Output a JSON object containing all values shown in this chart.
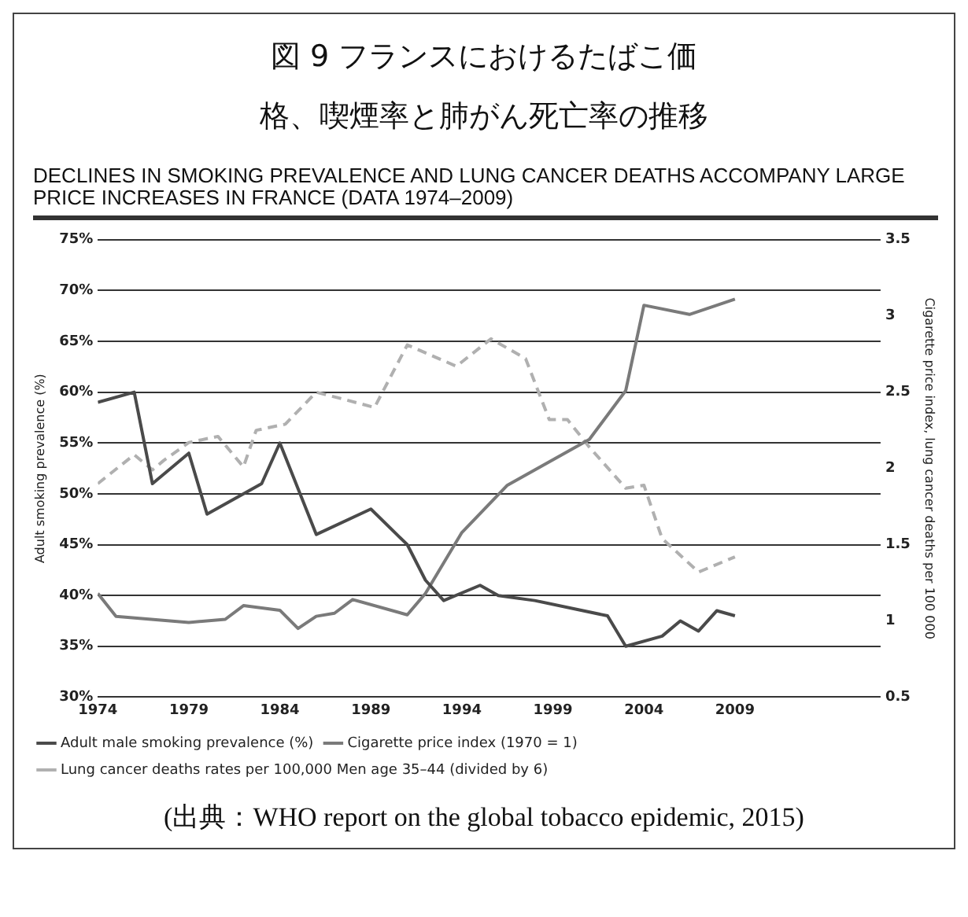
{
  "chart_data": {
    "type": "line",
    "title": "図 9 フランスにおけるたばこ価格、喫煙率と肺がん死亡率の推移",
    "subtitle": "DECLINES IN SMOKING PREVALENCE AND LUNG CANCER DEATHS ACCOMPANY LARGE PRICE INCREASES IN FRANCE (DATA 1974–2009)",
    "ylabel": "Adult smoking prevalence (%)",
    "y2label": "Cigarette price index, lung cancer deaths per 100 000",
    "annotations": [
      "(出典：WHO report on the global tobacco epidemic, 2015)"
    ],
    "xlim": [
      1974,
      2017
    ],
    "xticks": [
      1974,
      1979,
      1984,
      1989,
      1994,
      1999,
      2004,
      2009
    ],
    "ylim": [
      30,
      75
    ],
    "yticks": [
      {
        "value": 30,
        "label": "30%"
      },
      {
        "value": 35,
        "label": "35%"
      },
      {
        "value": 40,
        "label": "40%"
      },
      {
        "value": 45,
        "label": "45%"
      },
      {
        "value": 50,
        "label": "50%"
      },
      {
        "value": 55,
        "label": "55%"
      },
      {
        "value": 60,
        "label": "60%"
      },
      {
        "value": 65,
        "label": "65%"
      },
      {
        "value": 70,
        "label": "70%"
      },
      {
        "value": 75,
        "label": "75%"
      }
    ],
    "y2lim": [
      0.5,
      3.5
    ],
    "y2ticks": [
      0.5,
      1,
      1.5,
      2,
      2.5,
      3,
      3.5
    ],
    "grid": "y",
    "legend": "bottom",
    "marker": "none",
    "series": [
      {
        "name": "Adult male smoking prevalence (%)",
        "color": "#4a4a4a",
        "line_style": "solid",
        "x": [
          1974,
          1976,
          1977,
          1979,
          1980,
          1983,
          1984,
          1986,
          1989,
          1991,
          1992,
          1993,
          1995,
          1996,
          1998,
          2002,
          2003,
          2005,
          2006,
          2007,
          2008,
          2009
        ],
        "values": [
          59,
          60,
          51,
          54,
          48,
          51,
          55,
          46,
          48.5,
          45,
          41.5,
          39.5,
          41,
          40,
          39.5,
          38,
          35,
          36,
          37.5,
          36.5,
          38.5,
          38
        ]
      },
      {
        "name": "Cigarette price index (1970 = 1)",
        "color": "#7a7a7a",
        "line_style": "solid",
        "axis": "y2",
        "x": [
          1974,
          1975,
          1979,
          1981,
          1982,
          1984,
          1985,
          1986,
          1987,
          1988,
          1991,
          1992,
          1993,
          1994,
          1996.5,
          2001,
          2003,
          2004,
          2006.5,
          2009
        ],
        "values": [
          1.18,
          1.03,
          0.99,
          1.01,
          1.1,
          1.07,
          0.95,
          1.03,
          1.05,
          1.14,
          1.04,
          1.18,
          1.38,
          1.58,
          1.89,
          2.19,
          2.51,
          3.07,
          3.01,
          3.11
        ]
      },
      {
        "name": "Lung cancer deaths rates per 100,000 Men age 35–44 (divided by 6)",
        "color": "#b0b0b0",
        "line_style": "dashed",
        "axis": "y2",
        "x": [
          1974,
          1976,
          1977,
          1977.6,
          1979,
          1980.6,
          1982,
          1982.7,
          1984.3,
          1986,
          1987.3,
          1989.2,
          1991,
          1993.7,
          1995.6,
          1997.5,
          1998.8,
          1999.8,
          2001,
          2003,
          2004,
          2005,
          2007,
          2009
        ],
        "values": [
          1.9,
          2.09,
          1.99,
          2.05,
          2.17,
          2.21,
          2.01,
          2.25,
          2.29,
          2.5,
          2.46,
          2.4,
          2.81,
          2.67,
          2.85,
          2.72,
          2.32,
          2.32,
          2.14,
          1.87,
          1.89,
          1.54,
          1.32,
          1.42
        ]
      }
    ]
  }
}
